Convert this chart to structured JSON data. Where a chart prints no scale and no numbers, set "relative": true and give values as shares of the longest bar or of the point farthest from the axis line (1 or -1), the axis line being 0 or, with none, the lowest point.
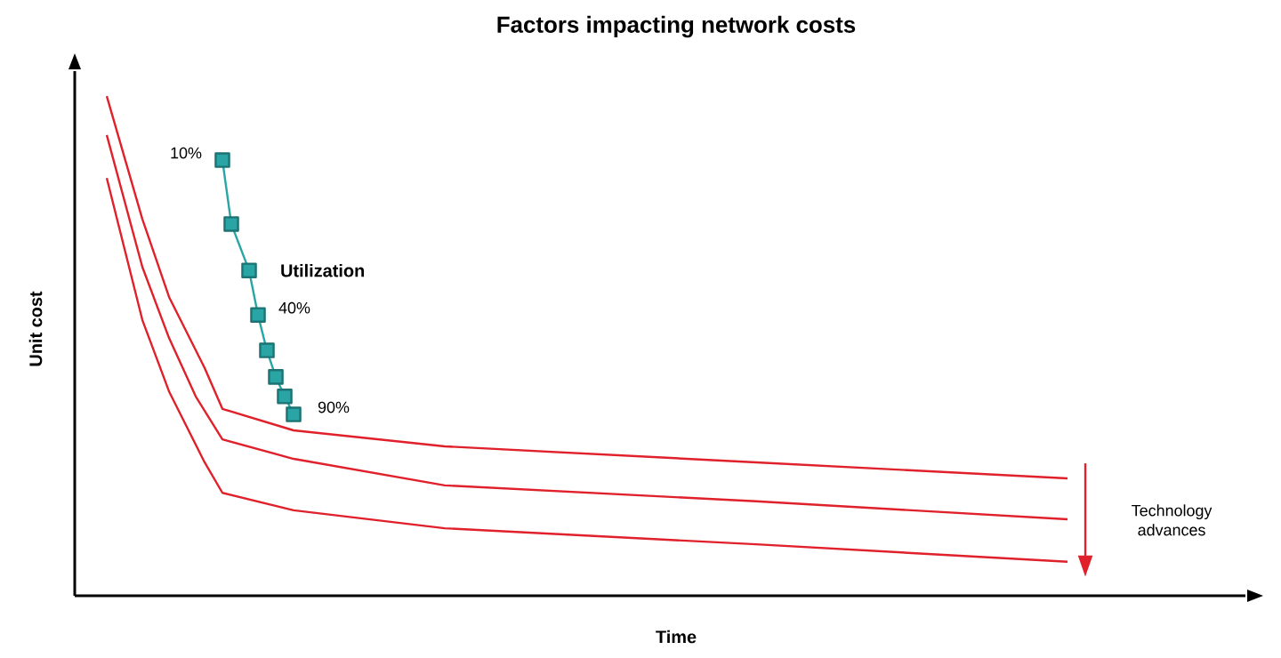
{
  "chart_data": {
    "type": "line",
    "title": "Factors impacting network costs",
    "xlabel": "Time",
    "ylabel": "Unit cost",
    "relative": true,
    "line_style": "solid",
    "categories": [
      null,
      null,
      null,
      null,
      null,
      null,
      null,
      null,
      null,
      null,
      null,
      null,
      null,
      null,
      null,
      null,
      null,
      null,
      null,
      null,
      null,
      null,
      null,
      null,
      null,
      null,
      null,
      null,
      null,
      null,
      null,
      null,
      null,
      null,
      null,
      null,
      null,
      null,
      null,
      null,
      null,
      null,
      null,
      null,
      null,
      null,
      null,
      null,
      null,
      null,
      null,
      null,
      null,
      null,
      null,
      null,
      null,
      null,
      null,
      null,
      null,
      null,
      null,
      null,
      null,
      null,
      null,
      null,
      null,
      null,
      null,
      null,
      null,
      null,
      null,
      null,
      null,
      null,
      null,
      null,
      null,
      null,
      null,
      null,
      null,
      null,
      null,
      null,
      null,
      null,
      null,
      null,
      null,
      null,
      null,
      null,
      null,
      null,
      null,
      null,
      null,
      null,
      null,
      null,
      null,
      null,
      null,
      null,
      null
    ],
    "series": [
      {
        "color": "#e0202a",
        "marker": "none",
        "values": [
          1.0,
          null,
          null,
          null,
          0.754,
          null,
          null,
          0.598,
          null,
          null,
          null,
          0.456,
          null,
          0.374,
          null,
          null,
          null,
          null,
          null,
          null,
          null,
          0.331,
          null,
          null,
          null,
          null,
          null,
          null,
          null,
          null,
          null,
          null,
          null,
          null,
          null,
          null,
          null,
          null,
          0.299,
          null,
          null,
          null,
          null,
          null,
          null,
          null,
          null,
          null,
          null,
          null,
          null,
          null,
          null,
          null,
          null,
          null,
          null,
          null,
          null,
          null,
          null,
          null,
          null,
          null,
          null,
          null,
          null,
          null,
          null,
          null,
          null,
          null,
          null,
          0.267,
          null,
          null,
          null,
          null,
          null,
          null,
          null,
          null,
          null,
          null,
          null,
          null,
          null,
          null,
          null,
          null,
          null,
          null,
          null,
          null,
          null,
          null,
          null,
          null,
          null,
          null,
          null,
          null,
          null,
          null,
          null,
          null,
          null,
          null,
          0.235
        ]
      },
      {
        "color": "#e0202a",
        "marker": "none",
        "values": [
          0.922,
          null,
          null,
          null,
          0.658,
          null,
          null,
          0.516,
          null,
          null,
          0.399,
          null,
          null,
          0.313,
          null,
          null,
          null,
          null,
          null,
          null,
          null,
          0.274,
          null,
          null,
          null,
          null,
          null,
          null,
          null,
          null,
          null,
          null,
          null,
          null,
          null,
          null,
          null,
          null,
          0.221,
          null,
          null,
          null,
          null,
          null,
          null,
          null,
          null,
          null,
          null,
          null,
          null,
          null,
          null,
          null,
          null,
          null,
          null,
          null,
          null,
          null,
          null,
          null,
          null,
          null,
          null,
          null,
          null,
          null,
          null,
          null,
          null,
          null,
          null,
          0.189,
          null,
          null,
          null,
          null,
          null,
          null,
          null,
          null,
          null,
          null,
          null,
          null,
          null,
          null,
          null,
          null,
          null,
          null,
          null,
          null,
          null,
          null,
          null,
          null,
          null,
          null,
          null,
          null,
          null,
          null,
          null,
          null,
          null,
          null,
          0.153
        ]
      },
      {
        "color": "#e0202a",
        "marker": "none",
        "values": [
          0.836,
          null,
          null,
          null,
          0.552,
          null,
          null,
          0.409,
          null,
          null,
          null,
          0.267,
          null,
          0.206,
          null,
          null,
          null,
          null,
          null,
          null,
          null,
          0.171,
          null,
          null,
          null,
          null,
          null,
          null,
          null,
          null,
          null,
          null,
          null,
          null,
          null,
          null,
          null,
          null,
          0.135,
          null,
          null,
          null,
          null,
          null,
          null,
          null,
          null,
          null,
          null,
          null,
          null,
          null,
          null,
          null,
          null,
          null,
          null,
          null,
          null,
          null,
          null,
          null,
          null,
          null,
          null,
          null,
          null,
          null,
          null,
          null,
          null,
          null,
          null,
          0.103,
          null,
          null,
          null,
          null,
          null,
          null,
          null,
          null,
          null,
          null,
          null,
          null,
          null,
          null,
          null,
          null,
          null,
          null,
          null,
          null,
          null,
          null,
          null,
          null,
          null,
          null,
          null,
          null,
          null,
          null,
          null,
          null,
          null,
          null,
          0.068
        ]
      },
      {
        "name": "Utilization",
        "color": "#2aa5a5",
        "marker": "square",
        "values": [
          null,
          null,
          null,
          null,
          null,
          null,
          null,
          null,
          null,
          null,
          null,
          null,
          null,
          0.872,
          0.744,
          null,
          0.651,
          0.562,
          0.491,
          0.438,
          0.399,
          0.363,
          null,
          null,
          null,
          null,
          null,
          null,
          null,
          null,
          null,
          null,
          null,
          null,
          null,
          null,
          null,
          null,
          null,
          null,
          null,
          null,
          null,
          null,
          null,
          null,
          null,
          null,
          null,
          null,
          null,
          null,
          null,
          null,
          null,
          null,
          null,
          null,
          null,
          null,
          null,
          null,
          null,
          null,
          null,
          null,
          null,
          null,
          null,
          null,
          null,
          null,
          null,
          null,
          null,
          null,
          null,
          null,
          null,
          null,
          null,
          null,
          null,
          null,
          null,
          null,
          null,
          null,
          null,
          null,
          null,
          null,
          null,
          null,
          null,
          null,
          null,
          null,
          null,
          null,
          null,
          null,
          null,
          null,
          null,
          null,
          null,
          null,
          null
        ]
      }
    ],
    "annotations": [
      "10%",
      "40%",
      "90%",
      "Technology advances"
    ]
  }
}
